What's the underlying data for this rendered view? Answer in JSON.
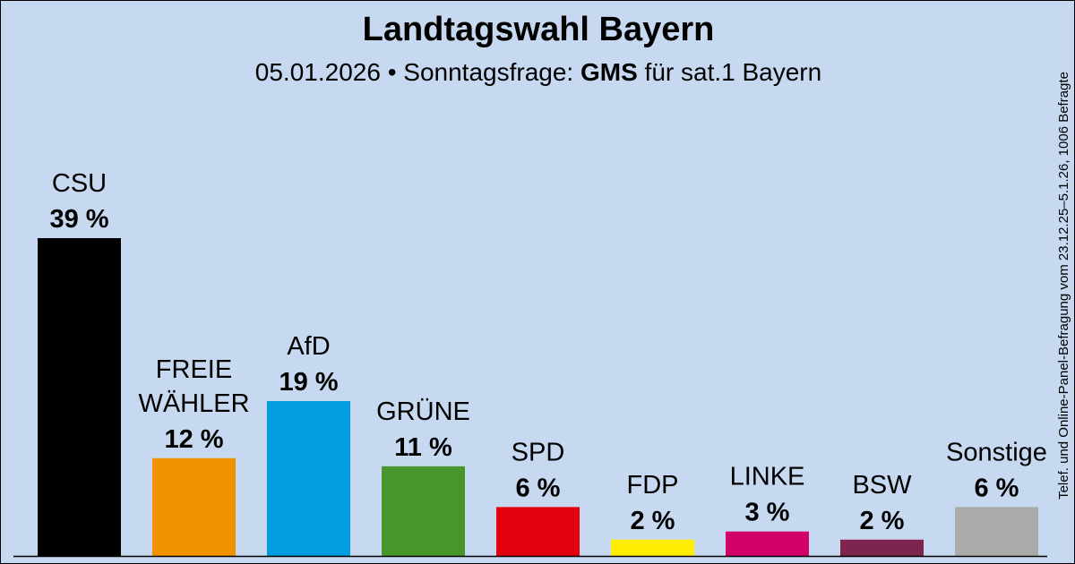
{
  "header": {
    "title": "Landtagswahl Bayern",
    "subtitle_prefix": "05.01.2026 • Sonntagsfrage:",
    "institute": "GMS",
    "subtitle_suffix": "für sat.1 Bayern"
  },
  "side_note": "Telef. und Online-Panel-Befragung vom 23.12.25–5.1.26, 1006 Befragte",
  "chart_data": {
    "type": "bar",
    "categories": [
      "CSU",
      "FREIE WÄHLER",
      "AfD",
      "GRÜNE",
      "SPD",
      "FDP",
      "LINKE",
      "BSW",
      "Sonstige"
    ],
    "label_lines": [
      [
        "CSU"
      ],
      [
        "FREIE",
        "WÄHLER"
      ],
      [
        "AfD"
      ],
      [
        "GRÜNE"
      ],
      [
        "SPD"
      ],
      [
        "FDP"
      ],
      [
        "LINKE"
      ],
      [
        "BSW"
      ],
      [
        "Sonstige"
      ]
    ],
    "values": [
      39,
      12,
      19,
      11,
      6,
      2,
      3,
      2,
      6
    ],
    "value_labels": [
      "39 %",
      "12 %",
      "19 %",
      "11 %",
      "6 %",
      "2 %",
      "3 %",
      "2 %",
      "6 %"
    ],
    "colors": [
      "#000000",
      "#f39200",
      "#009ee0",
      "#46962b",
      "#e3000f",
      "#ffed00",
      "#d4006a",
      "#7d254f",
      "#aaaaaa"
    ],
    "ylim": [
      0,
      39
    ],
    "grid": false,
    "legend": "none"
  }
}
